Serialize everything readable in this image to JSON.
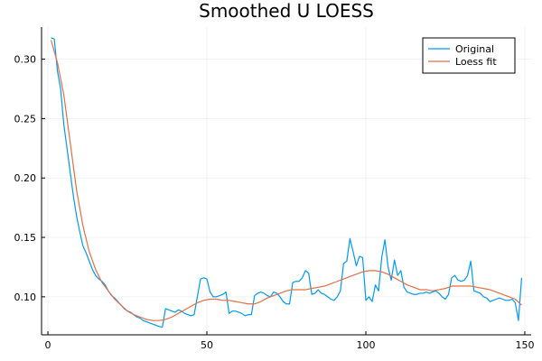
{
  "chart_data": {
    "type": "line",
    "title": "Smoothed U LOESS",
    "xlabel": "",
    "ylabel": "",
    "xlim": [
      -2,
      152
    ],
    "ylim": [
      0.068,
      0.327
    ],
    "xticks": [
      0,
      50,
      100,
      150
    ],
    "yticks": [
      0.1,
      0.15,
      0.2,
      0.25,
      0.3
    ],
    "xtick_labels": [
      "0",
      "50",
      "100",
      "150"
    ],
    "ytick_labels": [
      "0.10",
      "0.15",
      "0.20",
      "0.25",
      "0.30"
    ],
    "grid": true,
    "legend_position": "top-right",
    "series": [
      {
        "name": "Original",
        "color": "#009AFA",
        "points": [
          [
            1,
            0.318
          ],
          [
            2,
            0.317
          ],
          [
            3,
            0.29
          ],
          [
            4,
            0.275
          ],
          [
            5,
            0.245
          ],
          [
            6,
            0.225
          ],
          [
            7,
            0.205
          ],
          [
            8,
            0.185
          ],
          [
            9,
            0.168
          ],
          [
            10,
            0.155
          ],
          [
            11,
            0.143
          ],
          [
            12,
            0.137
          ],
          [
            13,
            0.13
          ],
          [
            14,
            0.123
          ],
          [
            15,
            0.118
          ],
          [
            16,
            0.115
          ],
          [
            17,
            0.113
          ],
          [
            18,
            0.11
          ],
          [
            19,
            0.105
          ],
          [
            20,
            0.101
          ],
          [
            21,
            0.099
          ],
          [
            22,
            0.096
          ],
          [
            23,
            0.093
          ],
          [
            24,
            0.09
          ],
          [
            25,
            0.088
          ],
          [
            26,
            0.087
          ],
          [
            27,
            0.085
          ],
          [
            28,
            0.083
          ],
          [
            29,
            0.082
          ],
          [
            30,
            0.08
          ],
          [
            31,
            0.079
          ],
          [
            32,
            0.078
          ],
          [
            33,
            0.077
          ],
          [
            34,
            0.076
          ],
          [
            35,
            0.075
          ],
          [
            36,
            0.0745
          ],
          [
            37,
            0.09
          ],
          [
            38,
            0.089
          ],
          [
            39,
            0.088
          ],
          [
            40,
            0.087
          ],
          [
            41,
            0.089
          ],
          [
            42,
            0.088
          ],
          [
            43,
            0.086
          ],
          [
            44,
            0.085
          ],
          [
            45,
            0.084
          ],
          [
            46,
            0.085
          ],
          [
            47,
            0.1
          ],
          [
            48,
            0.115
          ],
          [
            49,
            0.116
          ],
          [
            50,
            0.115
          ],
          [
            51,
            0.104
          ],
          [
            52,
            0.1
          ],
          [
            53,
            0.1
          ],
          [
            54,
            0.101
          ],
          [
            55,
            0.102
          ],
          [
            56,
            0.104
          ],
          [
            57,
            0.086
          ],
          [
            58,
            0.088
          ],
          [
            59,
            0.088
          ],
          [
            60,
            0.087
          ],
          [
            61,
            0.086
          ],
          [
            62,
            0.084
          ],
          [
            63,
            0.085
          ],
          [
            64,
            0.085
          ],
          [
            65,
            0.101
          ],
          [
            66,
            0.103
          ],
          [
            67,
            0.104
          ],
          [
            68,
            0.103
          ],
          [
            69,
            0.101
          ],
          [
            70,
            0.1
          ],
          [
            71,
            0.104
          ],
          [
            72,
            0.103
          ],
          [
            73,
            0.1
          ],
          [
            74,
            0.096
          ],
          [
            75,
            0.094
          ],
          [
            76,
            0.094
          ],
          [
            77,
            0.112
          ],
          [
            78,
            0.113
          ],
          [
            79,
            0.113
          ],
          [
            80,
            0.116
          ],
          [
            81,
            0.122
          ],
          [
            82,
            0.12
          ],
          [
            83,
            0.102
          ],
          [
            84,
            0.103
          ],
          [
            85,
            0.106
          ],
          [
            86,
            0.103
          ],
          [
            87,
            0.102
          ],
          [
            88,
            0.1
          ],
          [
            89,
            0.098
          ],
          [
            90,
            0.097
          ],
          [
            91,
            0.1
          ],
          [
            92,
            0.105
          ],
          [
            93,
            0.128
          ],
          [
            94,
            0.13
          ],
          [
            95,
            0.149
          ],
          [
            96,
            0.138
          ],
          [
            97,
            0.126
          ],
          [
            98,
            0.134
          ],
          [
            99,
            0.133
          ],
          [
            100,
            0.097
          ],
          [
            101,
            0.1
          ],
          [
            102,
            0.096
          ],
          [
            103,
            0.11
          ],
          [
            104,
            0.105
          ],
          [
            105,
            0.133
          ],
          [
            106,
            0.148
          ],
          [
            107,
            0.125
          ],
          [
            108,
            0.114
          ],
          [
            109,
            0.131
          ],
          [
            110,
            0.118
          ],
          [
            111,
            0.122
          ],
          [
            112,
            0.108
          ],
          [
            113,
            0.104
          ],
          [
            114,
            0.103
          ],
          [
            115,
            0.102
          ],
          [
            116,
            0.102
          ],
          [
            117,
            0.103
          ],
          [
            118,
            0.103
          ],
          [
            119,
            0.104
          ],
          [
            120,
            0.103
          ],
          [
            121,
            0.104
          ],
          [
            122,
            0.105
          ],
          [
            123,
            0.103
          ],
          [
            124,
            0.1
          ],
          [
            125,
            0.098
          ],
          [
            126,
            0.102
          ],
          [
            127,
            0.116
          ],
          [
            128,
            0.118
          ],
          [
            129,
            0.114
          ],
          [
            130,
            0.113
          ],
          [
            131,
            0.114
          ],
          [
            132,
            0.118
          ],
          [
            133,
            0.13
          ],
          [
            134,
            0.105
          ],
          [
            135,
            0.104
          ],
          [
            136,
            0.103
          ],
          [
            137,
            0.1
          ],
          [
            138,
            0.099
          ],
          [
            139,
            0.096
          ],
          [
            140,
            0.097
          ],
          [
            141,
            0.098
          ],
          [
            142,
            0.099
          ],
          [
            143,
            0.098
          ],
          [
            144,
            0.097
          ],
          [
            145,
            0.097
          ],
          [
            146,
            0.098
          ],
          [
            147,
            0.095
          ],
          [
            148,
            0.08
          ],
          [
            149,
            0.116
          ]
        ]
      },
      {
        "name": "Loess fit",
        "color": "#E26F46",
        "points": [
          [
            1,
            0.316
          ],
          [
            3,
            0.297
          ],
          [
            5,
            0.27
          ],
          [
            7,
            0.23
          ],
          [
            9,
            0.19
          ],
          [
            11,
            0.16
          ],
          [
            13,
            0.138
          ],
          [
            15,
            0.123
          ],
          [
            17,
            0.112
          ],
          [
            19,
            0.105
          ],
          [
            21,
            0.098
          ],
          [
            23,
            0.093
          ],
          [
            25,
            0.088
          ],
          [
            27,
            0.085
          ],
          [
            29,
            0.083
          ],
          [
            31,
            0.081
          ],
          [
            33,
            0.08
          ],
          [
            35,
            0.08
          ],
          [
            37,
            0.081
          ],
          [
            39,
            0.083
          ],
          [
            41,
            0.086
          ],
          [
            43,
            0.089
          ],
          [
            45,
            0.092
          ],
          [
            47,
            0.095
          ],
          [
            49,
            0.097
          ],
          [
            51,
            0.098
          ],
          [
            53,
            0.098
          ],
          [
            55,
            0.097
          ],
          [
            57,
            0.097
          ],
          [
            59,
            0.096
          ],
          [
            61,
            0.095
          ],
          [
            63,
            0.094
          ],
          [
            65,
            0.094
          ],
          [
            67,
            0.096
          ],
          [
            69,
            0.099
          ],
          [
            71,
            0.101
          ],
          [
            73,
            0.103
          ],
          [
            75,
            0.105
          ],
          [
            77,
            0.106
          ],
          [
            79,
            0.106
          ],
          [
            81,
            0.106
          ],
          [
            83,
            0.107
          ],
          [
            85,
            0.108
          ],
          [
            87,
            0.109
          ],
          [
            89,
            0.111
          ],
          [
            91,
            0.113
          ],
          [
            93,
            0.115
          ],
          [
            95,
            0.117
          ],
          [
            97,
            0.119
          ],
          [
            99,
            0.121
          ],
          [
            101,
            0.122
          ],
          [
            103,
            0.122
          ],
          [
            105,
            0.121
          ],
          [
            107,
            0.119
          ],
          [
            109,
            0.116
          ],
          [
            111,
            0.113
          ],
          [
            113,
            0.11
          ],
          [
            115,
            0.108
          ],
          [
            117,
            0.106
          ],
          [
            119,
            0.106
          ],
          [
            121,
            0.105
          ],
          [
            123,
            0.106
          ],
          [
            125,
            0.107
          ],
          [
            127,
            0.109
          ],
          [
            129,
            0.109
          ],
          [
            131,
            0.109
          ],
          [
            133,
            0.109
          ],
          [
            135,
            0.108
          ],
          [
            137,
            0.107
          ],
          [
            139,
            0.106
          ],
          [
            141,
            0.104
          ],
          [
            143,
            0.102
          ],
          [
            145,
            0.1
          ],
          [
            147,
            0.098
          ],
          [
            149,
            0.093
          ]
        ]
      }
    ]
  }
}
